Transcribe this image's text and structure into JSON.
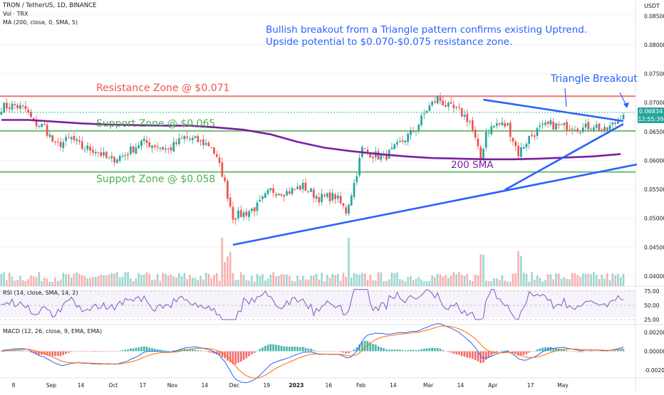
{
  "header": {
    "symbol_line": "TRON / TetherUS, 1D, BINANCE",
    "vol_line": "Vol · TRX",
    "ma_line": "MA (200, close, 0, SMA, 5)",
    "rsi_line": "RSI (14, close, SMA, 14, 2)",
    "macd_line": "MACD (12, 26, close, 9, EMA, EMA)",
    "currency": "USDT"
  },
  "annotations": {
    "headline_1": "Bullish breakout from a Triangle pattern confirms existing Uptrend.",
    "headline_2": "Upside potential to $0.070-$0.075 resistance zone.",
    "resistance": "Resistance Zone @ $0.071",
    "support_065": "Support Zone @ $0.065",
    "support_058": "Support Zone @ $0.058",
    "sma": "200 SMA",
    "triangle": "Triangle",
    "breakout": "Breakout"
  },
  "price_label": {
    "value": "0.06834",
    "timer": "12:55:39"
  },
  "colors": {
    "up": "#26a69a",
    "down": "#ef5350",
    "resistance": "#ef5350",
    "support": "#4caf50",
    "sma": "#7b1fa2",
    "trendline": "#2962ff",
    "headline": "#2962ff",
    "rsi_line": "#7e57c2",
    "macd_line": "#2962ff",
    "signal_line": "#ff6d00"
  },
  "chart_data": {
    "type": "candlestick",
    "title": "TRON / TetherUS, 1D, BINANCE",
    "x_ticks": [
      "8",
      "Sep",
      "14",
      "Oct",
      "17",
      "Nov",
      "14",
      "Dec",
      "19",
      "2023",
      "16",
      "Feb",
      "14",
      "Mar",
      "14",
      "Apr",
      "17",
      "May"
    ],
    "price_axis": {
      "ticks": [
        "0.08500",
        "0.08000",
        "0.07500",
        "0.07000",
        "0.06500",
        "0.06000",
        "0.05500",
        "0.05000",
        "0.04500",
        "0.04000"
      ],
      "range": [
        0.039,
        0.087
      ]
    },
    "price_anchors": [
      [
        0,
        0.0692
      ],
      [
        5,
        0.0695
      ],
      [
        9,
        0.0688
      ],
      [
        12,
        0.0665
      ],
      [
        16,
        0.0658
      ],
      [
        20,
        0.0625
      ],
      [
        26,
        0.0638
      ],
      [
        30,
        0.0622
      ],
      [
        35,
        0.0618
      ],
      [
        40,
        0.06
      ],
      [
        46,
        0.061
      ],
      [
        52,
        0.0632
      ],
      [
        58,
        0.0625
      ],
      [
        62,
        0.0618
      ],
      [
        68,
        0.064
      ],
      [
        74,
        0.0632
      ],
      [
        78,
        0.0625
      ],
      [
        82,
        0.0578
      ],
      [
        86,
        0.0503
      ],
      [
        90,
        0.0508
      ],
      [
        95,
        0.052
      ],
      [
        100,
        0.0548
      ],
      [
        106,
        0.0545
      ],
      [
        112,
        0.0555
      ],
      [
        118,
        0.0535
      ],
      [
        124,
        0.0538
      ],
      [
        128,
        0.0512
      ],
      [
        131,
        0.056
      ],
      [
        134,
        0.062
      ],
      [
        138,
        0.061
      ],
      [
        142,
        0.0605
      ],
      [
        146,
        0.062
      ],
      [
        150,
        0.0638
      ],
      [
        154,
        0.0655
      ],
      [
        158,
        0.0688
      ],
      [
        162,
        0.0708
      ],
      [
        166,
        0.0692
      ],
      [
        170,
        0.0685
      ],
      [
        174,
        0.0668
      ],
      [
        176,
        0.0635
      ],
      [
        178,
        0.06
      ],
      [
        180,
        0.065
      ],
      [
        184,
        0.0663
      ],
      [
        188,
        0.066
      ],
      [
        192,
        0.0612
      ],
      [
        196,
        0.064
      ],
      [
        200,
        0.0655
      ],
      [
        204,
        0.0662
      ],
      [
        208,
        0.0658
      ],
      [
        212,
        0.066
      ],
      [
        216,
        0.0655
      ],
      [
        220,
        0.0662
      ],
      [
        224,
        0.065
      ],
      [
        228,
        0.0665
      ],
      [
        231,
        0.0683
      ]
    ],
    "levels": [
      {
        "name": "Resistance Zone @ $0.071",
        "value": 0.0711
      },
      {
        "name": "Support Zone @ $0.065",
        "value": 0.0651
      },
      {
        "name": "Support Zone @ $0.058",
        "value": 0.058
      }
    ],
    "sma_200": [
      [
        0,
        0.067
      ],
      [
        10,
        0.067
      ],
      [
        20,
        0.0667
      ],
      [
        30,
        0.0664
      ],
      [
        40,
        0.0662
      ],
      [
        50,
        0.0661
      ],
      [
        60,
        0.066
      ],
      [
        70,
        0.066
      ],
      [
        80,
        0.0657
      ],
      [
        90,
        0.0653
      ],
      [
        100,
        0.0645
      ],
      [
        110,
        0.0632
      ],
      [
        120,
        0.0622
      ],
      [
        130,
        0.0616
      ],
      [
        140,
        0.0611
      ],
      [
        150,
        0.0607
      ],
      [
        160,
        0.0604
      ],
      [
        170,
        0.0603
      ],
      [
        180,
        0.0602
      ],
      [
        190,
        0.0602
      ],
      [
        200,
        0.0603
      ],
      [
        210,
        0.0605
      ],
      [
        220,
        0.0607
      ],
      [
        230,
        0.0611
      ]
    ],
    "trendlines": [
      {
        "name": "triangle-top",
        "from": [
          179,
          0.0705
        ],
        "to": [
          231,
          0.0668
        ]
      },
      {
        "name": "triangle-bottom",
        "from": [
          187,
          0.0549
        ],
        "to": [
          231,
          0.0663
        ]
      },
      {
        "name": "long-term-uptrend",
        "from": [
          86,
          0.0454
        ],
        "to": [
          236,
          0.0593
        ]
      }
    ],
    "rsi": {
      "ticks": [
        "75.00",
        "50.00",
        "25.00"
      ],
      "range": [
        20,
        80
      ]
    },
    "macd": {
      "ticks": [
        "0.00200",
        "0.00000",
        "-0.00200"
      ],
      "range": [
        -0.0026,
        0.0026
      ]
    }
  }
}
